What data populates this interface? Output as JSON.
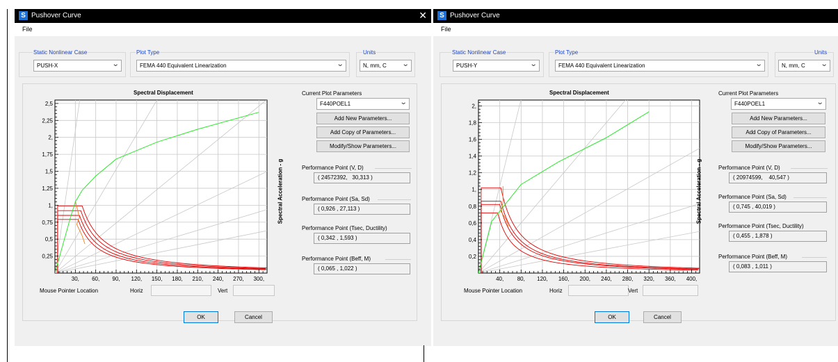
{
  "windows": [
    {
      "title": "Pushover Curve",
      "menu_file": "File",
      "case_label": "Static Nonlinear Case",
      "case_value": "PUSH-X",
      "plot_type_label": "Plot Type",
      "plot_type_value": "FEMA 440 Equivalent Linearization",
      "units_label": "Units",
      "units_value": "N, mm, C",
      "plot_title": "Spectral Displacement",
      "ylabel": "Spectral Acceleration - g",
      "current_params_label": "Current Plot Parameters",
      "current_params_value": "F440POEL1",
      "btn_add_new": "Add New Parameters...",
      "btn_add_copy": "Add Copy of Parameters...",
      "btn_modify": "Modify/Show Parameters...",
      "pp_vd_label": "Performance Point (V, D)",
      "pp_vd_value": "( 24572392,   30,313 )",
      "pp_sasd_label": "Performance Point (Sa, Sd)",
      "pp_sasd_value": "( 0,926 , 27,113 )",
      "pp_tsec_label": "Performance Point (Tsec, Ductility)",
      "pp_tsec_value": "( 0,342 , 1,593 )",
      "pp_beff_label": "Performance Point (Beff, M)",
      "pp_beff_value": "( 0,065 , 1,022 )",
      "mouse_label": "Mouse Pointer Location",
      "horiz_label": "Horiz",
      "vert_label": "Vert",
      "ok_label": "OK",
      "cancel_label": "Cancel",
      "chart_data": {
        "type": "line",
        "title": "Spectral Displacement",
        "ylabel": "Spectral Acceleration - g",
        "xlim": [
          0,
          312
        ],
        "ylim": [
          0,
          2.55
        ],
        "x_ticks": [
          "30,",
          "60,",
          "90,",
          "120,",
          "150,",
          "180,",
          "210,",
          "240,",
          "270,",
          "300,"
        ],
        "x_tick_values": [
          30,
          60,
          90,
          120,
          150,
          180,
          210,
          240,
          270,
          300
        ],
        "y_ticks": [
          "0,25",
          "0,5",
          "0,75",
          "1,",
          "1,25",
          "1,5",
          "1,75",
          "2,",
          "2,25",
          "2,5"
        ],
        "y_tick_values": [
          0.25,
          0.5,
          0.75,
          1.0,
          1.25,
          1.5,
          1.75,
          2.0,
          2.25,
          2.5
        ],
        "grid": true,
        "capacity_curve": [
          [
            0,
            0
          ],
          [
            22,
            0.79
          ],
          [
            30,
            1.05
          ],
          [
            40,
            1.22
          ],
          [
            60,
            1.43
          ],
          [
            90,
            1.68
          ],
          [
            150,
            1.93
          ],
          [
            210,
            2.12
          ],
          [
            300,
            2.37
          ]
        ],
        "radial_periods_slopes": [
          7.0,
          1.7,
          0.82,
          0.48,
          0.3,
          0.2
        ],
        "demand_spectra": [
          {
            "plateau": 0.99,
            "corner": 40,
            "x0": 4
          },
          {
            "plateau": 0.92,
            "corner": 38,
            "x0": 4
          },
          {
            "plateau": 0.85,
            "corner": 36,
            "x0": 4
          },
          {
            "plateau": 0.79,
            "corner": 34,
            "x0": 4
          }
        ],
        "family_curve": [
          [
            30,
            1.06
          ],
          [
            36,
            0.82
          ],
          [
            32,
            0.72
          ],
          [
            40,
            0.55
          ],
          [
            44,
            0.43
          ]
        ]
      }
    },
    {
      "title": "Pushover Curve",
      "menu_file": "File",
      "case_label": "Static Nonlinear Case",
      "case_value": "PUSH-Y",
      "plot_type_label": "Plot Type",
      "plot_type_value": "FEMA 440 Equivalent Linearization",
      "units_label": "Units",
      "units_value": "N, mm, C",
      "plot_title": "Spectral Displacement",
      "ylabel": "Spectral Acceleration - g",
      "current_params_label": "Current Plot Parameters",
      "current_params_value": "F440POEL1",
      "btn_add_new": "Add New Parameters...",
      "btn_add_copy": "Add Copy of Parameters...",
      "btn_modify": "Modify/Show Parameters...",
      "pp_vd_label": "Performance Point (V, D)",
      "pp_vd_value": "( 20974599,    40,547 )",
      "pp_sasd_label": "Performance Point (Sa, Sd)",
      "pp_sasd_value": "( 0,745 , 40,019 )",
      "pp_tsec_label": "Performance Point (Tsec, Ductility)",
      "pp_tsec_value": "( 0,455 , 1,878 )",
      "pp_beff_label": "Performance Point (Beff, M)",
      "pp_beff_value": "( 0,083 , 1,011 )",
      "mouse_label": "Mouse Pointer Location",
      "horiz_label": "Horiz",
      "vert_label": "Vert",
      "ok_label": "OK",
      "cancel_label": "Cancel",
      "chart_data": {
        "type": "line",
        "title": "Spectral Displacement",
        "ylabel": "Spectral Acceleration - g",
        "xlim": [
          0,
          415
        ],
        "ylim": [
          0,
          2.07
        ],
        "x_ticks": [
          "40,",
          "80,",
          "120,",
          "160,",
          "200,",
          "240,",
          "280,",
          "320,",
          "360,",
          "400,"
        ],
        "x_tick_values": [
          40,
          80,
          120,
          160,
          200,
          240,
          280,
          320,
          360,
          400
        ],
        "y_ticks": [
          "0,2",
          "0,4",
          "0,6",
          "0,8",
          "1,",
          "1,2",
          "1,4",
          "1,6",
          "1,8",
          "2,"
        ],
        "y_tick_values": [
          0.2,
          0.4,
          0.6,
          0.8,
          1.0,
          1.2,
          1.4,
          1.6,
          1.8,
          2.0
        ],
        "grid": true,
        "capacity_curve": [
          [
            0,
            0
          ],
          [
            25,
            0.62
          ],
          [
            40,
            0.74
          ],
          [
            60,
            0.9
          ],
          [
            80,
            1.06
          ],
          [
            150,
            1.33
          ],
          [
            240,
            1.62
          ],
          [
            320,
            1.93
          ]
        ],
        "radial_periods_slopes": [
          2.6,
          0.75,
          0.36,
          0.2,
          0.12
        ],
        "demand_spectra": [
          {
            "plateau": 1.02,
            "corner": 42,
            "x0": 5
          },
          {
            "plateau": 0.86,
            "corner": 42,
            "x0": 5
          },
          {
            "plateau": 0.82,
            "corner": 40,
            "x0": 5
          },
          {
            "plateau": 0.72,
            "corner": 36,
            "x0": 5
          }
        ],
        "family_curve": [
          [
            46,
            1.04
          ],
          [
            46,
            0.84
          ],
          [
            42,
            0.74
          ],
          [
            52,
            0.64
          ],
          [
            56,
            0.56
          ]
        ]
      }
    }
  ]
}
